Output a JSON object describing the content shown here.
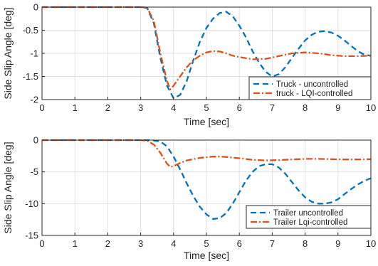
{
  "chart_data": [
    {
      "type": "line",
      "xlabel": "Time [sec]",
      "ylabel": "Side Slip Angle [deg]",
      "xlim": [
        0,
        10
      ],
      "ylim": [
        -2,
        0
      ],
      "xticks": [
        "0",
        "1",
        "2",
        "3",
        "4",
        "5",
        "6",
        "7",
        "8",
        "9",
        "10"
      ],
      "yticks": [
        "0",
        "-0.5",
        "-1",
        "-1.5",
        "-2"
      ],
      "grid": true,
      "legend_position": "bottom-right",
      "series": [
        {
          "name": "Truck - uncontrolled",
          "color": "#0072BD",
          "style": "dashed",
          "x": [
            0,
            3.0,
            3.2,
            3.4,
            3.6,
            3.8,
            4.0,
            4.2,
            4.4,
            4.6,
            4.8,
            5.0,
            5.2,
            5.4,
            5.6,
            5.8,
            6.0,
            6.2,
            6.4,
            6.6,
            6.8,
            7.0,
            7.2,
            7.4,
            7.6,
            7.8,
            8.0,
            8.2,
            8.4,
            8.6,
            8.8,
            9.0,
            9.2,
            9.4,
            9.6,
            9.8,
            10.0
          ],
          "y": [
            0,
            0,
            -0.02,
            -0.35,
            -1.1,
            -1.7,
            -1.97,
            -1.9,
            -1.6,
            -1.15,
            -0.75,
            -0.45,
            -0.25,
            -0.13,
            -0.1,
            -0.2,
            -0.4,
            -0.65,
            -0.95,
            -1.2,
            -1.4,
            -1.5,
            -1.45,
            -1.3,
            -1.1,
            -0.9,
            -0.72,
            -0.6,
            -0.53,
            -0.52,
            -0.55,
            -0.62,
            -0.72,
            -0.84,
            -0.95,
            -1.03,
            -1.05
          ]
        },
        {
          "name": "truck - LQI-controlled",
          "color": "#D95319",
          "style": "dashdot",
          "x": [
            0,
            3.0,
            3.2,
            3.4,
            3.6,
            3.8,
            3.9,
            4.0,
            4.2,
            4.4,
            4.6,
            4.8,
            5.0,
            5.2,
            5.4,
            5.6,
            5.8,
            6.0,
            6.4,
            6.8,
            7.2,
            7.6,
            8.0,
            8.4,
            8.8,
            9.2,
            9.6,
            10.0
          ],
          "y": [
            0,
            0,
            -0.01,
            -0.3,
            -1.0,
            -1.6,
            -1.78,
            -1.7,
            -1.5,
            -1.3,
            -1.15,
            -1.05,
            -0.98,
            -0.95,
            -0.96,
            -1.0,
            -1.05,
            -1.08,
            -1.13,
            -1.12,
            -1.06,
            -1.0,
            -0.98,
            -1.0,
            -1.04,
            -1.06,
            -1.06,
            -1.05
          ]
        }
      ]
    },
    {
      "type": "line",
      "xlabel": "Time [sec]",
      "ylabel": "Side Slip Angle [deg]",
      "xlim": [
        0,
        10
      ],
      "ylim": [
        -15,
        0
      ],
      "xticks": [
        "0",
        "1",
        "2",
        "3",
        "4",
        "5",
        "6",
        "7",
        "8",
        "9",
        "10"
      ],
      "yticks": [
        "0",
        "-5",
        "-10",
        "-15"
      ],
      "grid": true,
      "legend_position": "bottom-right",
      "series": [
        {
          "name": "Trailer uncontrolled",
          "color": "#0072BD",
          "style": "dashed",
          "x": [
            0,
            3.3,
            3.6,
            3.8,
            4.0,
            4.2,
            4.4,
            4.6,
            4.8,
            5.0,
            5.2,
            5.4,
            5.6,
            5.8,
            6.0,
            6.2,
            6.4,
            6.6,
            6.8,
            7.0,
            7.2,
            7.4,
            7.6,
            7.8,
            8.0,
            8.2,
            8.4,
            8.6,
            8.8,
            9.0,
            9.2,
            9.4,
            9.6,
            9.8,
            10.0
          ],
          "y": [
            0,
            0,
            -0.2,
            -1.0,
            -2.6,
            -4.6,
            -6.8,
            -8.8,
            -10.5,
            -11.7,
            -12.4,
            -12.3,
            -11.5,
            -10.0,
            -8.2,
            -6.4,
            -5.0,
            -4.1,
            -3.8,
            -3.8,
            -4.3,
            -5.3,
            -6.6,
            -7.9,
            -9.0,
            -9.7,
            -10.0,
            -10.0,
            -9.8,
            -9.3,
            -8.5,
            -7.7,
            -7.0,
            -6.4,
            -6.0
          ]
        },
        {
          "name": "Trailer Lqi-controlled",
          "color": "#D95319",
          "style": "dashdot",
          "x": [
            0,
            3.0,
            3.2,
            3.4,
            3.6,
            3.8,
            3.9,
            4.0,
            4.2,
            4.4,
            4.6,
            4.8,
            5.0,
            5.2,
            5.4,
            5.6,
            6.0,
            6.4,
            6.8,
            7.2,
            7.6,
            8.0,
            8.4,
            8.8,
            9.2,
            9.6,
            10.0
          ],
          "y": [
            0,
            0,
            -0.1,
            -0.7,
            -2.0,
            -3.7,
            -4.2,
            -4.1,
            -3.6,
            -3.2,
            -3.0,
            -2.8,
            -2.7,
            -2.6,
            -2.6,
            -2.65,
            -2.85,
            -3.1,
            -3.2,
            -3.15,
            -3.05,
            -2.95,
            -2.95,
            -3.0,
            -3.05,
            -3.05,
            -3.0
          ]
        }
      ]
    }
  ]
}
